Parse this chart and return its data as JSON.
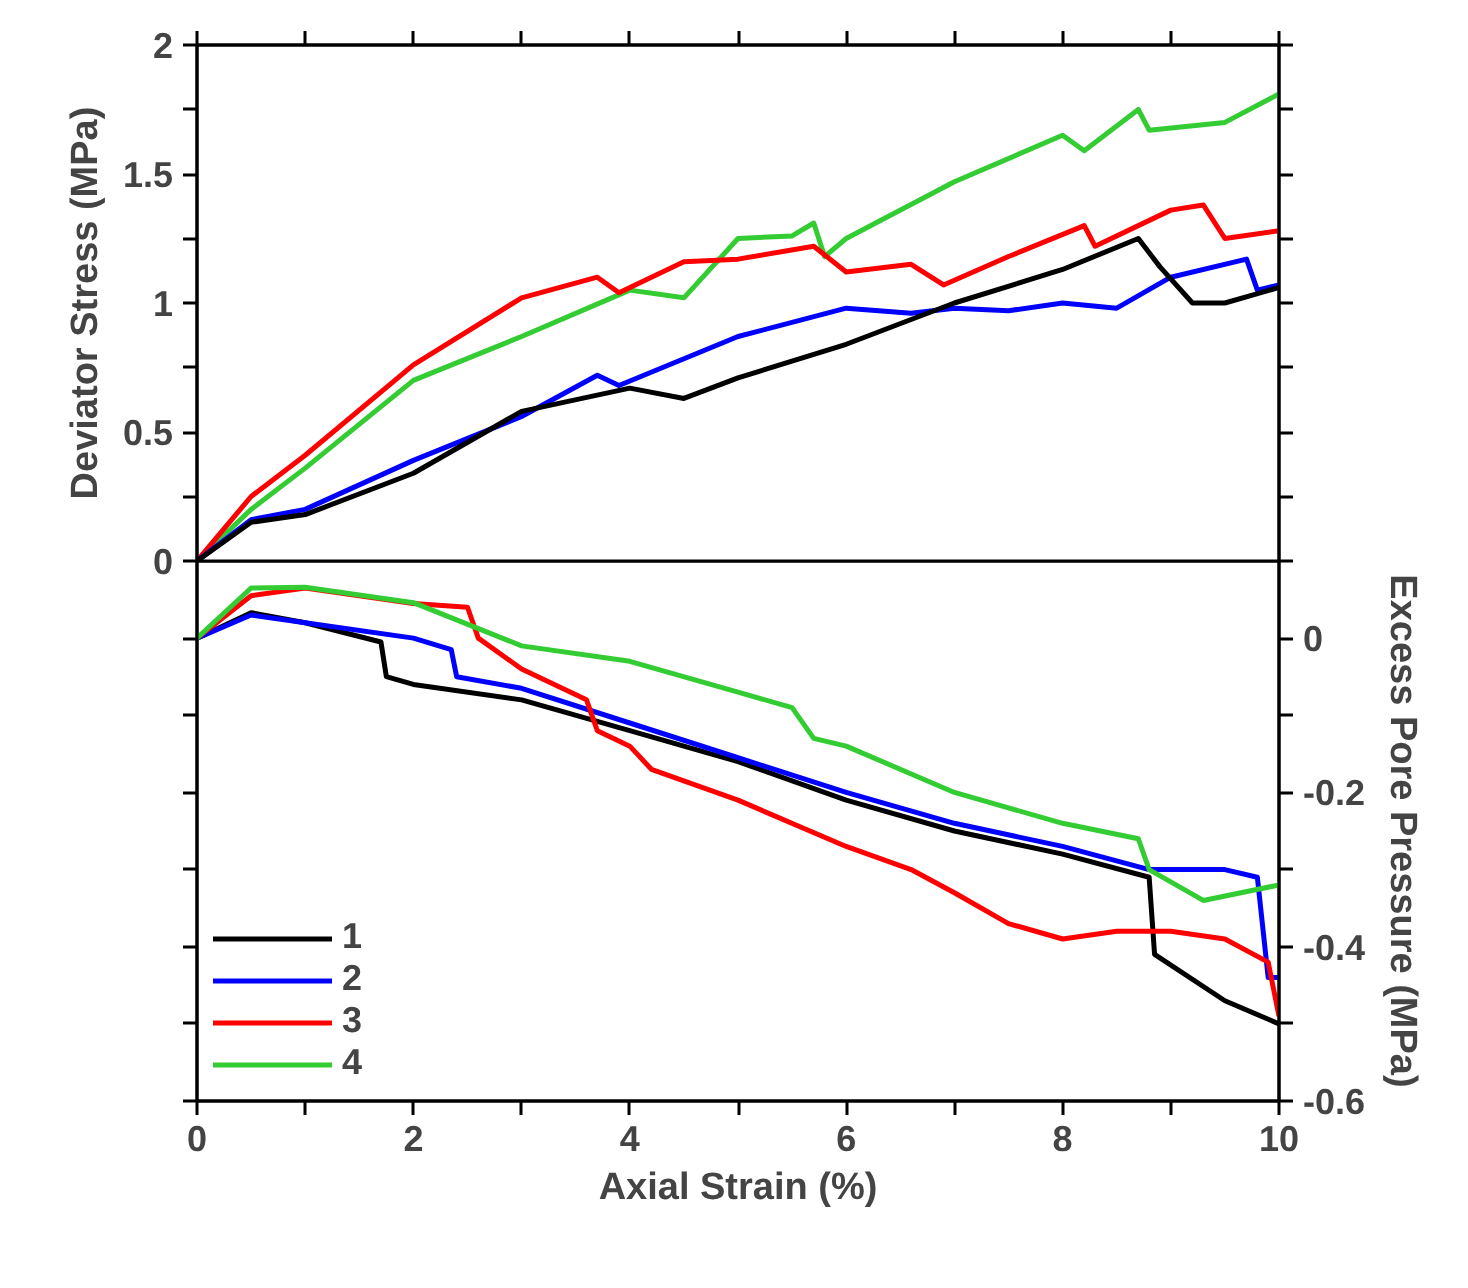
{
  "chart_data": [
    {
      "type": "line",
      "ylabel": "Deviator Stress (MPa)",
      "xlim": [
        0,
        10
      ],
      "xticks": [
        {
          "value": 0,
          "label": null
        },
        {
          "value": 1,
          "label": null
        },
        {
          "value": 2,
          "label": null
        },
        {
          "value": 3,
          "label": null
        },
        {
          "value": 4,
          "label": null
        },
        {
          "value": 5,
          "label": null
        },
        {
          "value": 6,
          "label": null
        },
        {
          "value": 7,
          "label": null
        },
        {
          "value": 8,
          "label": null
        },
        {
          "value": 9,
          "label": null
        },
        {
          "value": 10,
          "label": null
        }
      ],
      "ylim": [
        0,
        2
      ],
      "yticks": [
        0,
        {
          "value": 0.25,
          "label": null
        },
        0.5,
        {
          "value": 0.75,
          "label": null
        },
        1,
        {
          "value": 1.25,
          "label": null
        },
        1.5,
        {
          "value": 1.75,
          "label": null
        },
        2
      ],
      "tick_labels": "y",
      "grid": false,
      "legend": false,
      "line_style": "solid",
      "marker": "none",
      "series": [
        {
          "color": "#000000",
          "x": [
            0,
            0.5,
            1,
            2,
            3,
            4,
            4.5,
            5,
            6,
            7,
            8,
            8.7,
            8.9,
            9.2,
            9.5,
            10
          ],
          "values": [
            0,
            0.15,
            0.18,
            0.34,
            0.58,
            0.67,
            0.63,
            0.71,
            0.84,
            1.0,
            1.13,
            1.25,
            1.14,
            1.0,
            1.0,
            1.06
          ]
        },
        {
          "color": "#0000ff",
          "x": [
            0,
            0.5,
            1,
            2,
            3,
            3.7,
            3.9,
            5,
            6,
            6.6,
            7,
            7.5,
            8,
            8.5,
            9,
            9.7,
            9.8,
            10
          ],
          "values": [
            0,
            0.16,
            0.2,
            0.39,
            0.56,
            0.72,
            0.68,
            0.87,
            0.98,
            0.96,
            0.98,
            0.97,
            1.0,
            0.98,
            1.1,
            1.17,
            1.05,
            1.07
          ]
        },
        {
          "color": "#ff0000",
          "x": [
            0,
            0.5,
            1,
            2,
            3,
            3.7,
            3.9,
            4.5,
            5,
            5.7,
            6,
            6.6,
            6.9,
            7.5,
            8.2,
            8.3,
            9,
            9.3,
            9.5,
            10
          ],
          "values": [
            0,
            0.25,
            0.41,
            0.76,
            1.02,
            1.1,
            1.04,
            1.16,
            1.17,
            1.22,
            1.12,
            1.15,
            1.07,
            1.18,
            1.3,
            1.22,
            1.36,
            1.38,
            1.25,
            1.28
          ]
        },
        {
          "color": "#33cc33",
          "x": [
            0,
            0.5,
            1,
            2,
            3,
            4,
            4.5,
            5,
            5.5,
            5.7,
            5.8,
            6,
            7,
            8,
            8.2,
            8.7,
            8.8,
            9.5,
            10
          ],
          "values": [
            0,
            0.2,
            0.36,
            0.7,
            0.87,
            1.05,
            1.02,
            1.25,
            1.26,
            1.31,
            1.18,
            1.25,
            1.47,
            1.65,
            1.59,
            1.75,
            1.67,
            1.7,
            1.81
          ]
        }
      ]
    },
    {
      "type": "line",
      "xlabel": "Axial Strain (%)",
      "y2label": "Excess Pore Pressure (MPa)",
      "xlim": [
        0,
        10
      ],
      "xticks": [
        0,
        {
          "value": 1,
          "label": null
        },
        2,
        {
          "value": 3,
          "label": null
        },
        4,
        {
          "value": 5,
          "label": null
        },
        6,
        {
          "value": 7,
          "label": null
        },
        8,
        {
          "value": 9,
          "label": null
        },
        10
      ],
      "y2lim": [
        -0.6,
        0.1
      ],
      "y2ticks": [
        0,
        {
          "value": -0.1,
          "label": null
        },
        -0.2,
        {
          "value": -0.3,
          "label": null
        },
        -0.4,
        {
          "value": -0.5,
          "label": null
        },
        -0.6
      ],
      "grid": false,
      "legend": "bottom left",
      "line_style": "solid",
      "marker": "none",
      "series": [
        {
          "name": "1",
          "color": "#000000",
          "axis": "y2",
          "x": [
            0,
            0.5,
            1,
            1.7,
            1.75,
            2,
            3,
            4,
            5,
            6,
            7,
            8,
            8.8,
            8.85,
            9.5,
            10
          ],
          "values": [
            0,
            0.033,
            0.02,
            -0.005,
            -0.05,
            -0.06,
            -0.08,
            -0.12,
            -0.16,
            -0.21,
            -0.25,
            -0.28,
            -0.31,
            -0.41,
            -0.47,
            -0.5
          ]
        },
        {
          "name": "2",
          "color": "#0000ff",
          "axis": "y2",
          "x": [
            0,
            0.5,
            1,
            2,
            2.35,
            2.4,
            3,
            4,
            5,
            6,
            7,
            8,
            8.8,
            9.5,
            9.8,
            9.9,
            10
          ],
          "values": [
            0,
            0.03,
            0.02,
            0.0,
            -0.015,
            -0.05,
            -0.065,
            -0.11,
            -0.155,
            -0.2,
            -0.24,
            -0.27,
            -0.3,
            -0.3,
            -0.31,
            -0.44,
            -0.44
          ]
        },
        {
          "name": "3",
          "color": "#ff0000",
          "axis": "y2",
          "x": [
            0,
            0.5,
            1,
            2,
            2.5,
            2.6,
            3,
            3.6,
            3.7,
            4,
            4.2,
            5,
            6,
            6.6,
            7,
            7.5,
            8,
            8.5,
            9,
            9.5,
            9.9,
            10
          ],
          "values": [
            0,
            0.055,
            0.065,
            0.045,
            0.04,
            0.0,
            -0.04,
            -0.08,
            -0.12,
            -0.14,
            -0.17,
            -0.21,
            -0.27,
            -0.3,
            -0.33,
            -0.37,
            -0.39,
            -0.38,
            -0.38,
            -0.39,
            -0.42,
            -0.49
          ]
        },
        {
          "name": "4",
          "color": "#33cc33",
          "axis": "y2",
          "x": [
            0,
            0.5,
            1,
            2,
            3,
            4,
            5,
            5.5,
            5.7,
            6,
            7,
            8,
            8.7,
            8.8,
            9.3,
            10
          ],
          "values": [
            0,
            0.065,
            0.066,
            0.046,
            -0.01,
            -0.03,
            -0.07,
            -0.09,
            -0.13,
            -0.14,
            -0.2,
            -0.24,
            -0.26,
            -0.3,
            -0.34,
            -0.32
          ]
        }
      ]
    }
  ]
}
